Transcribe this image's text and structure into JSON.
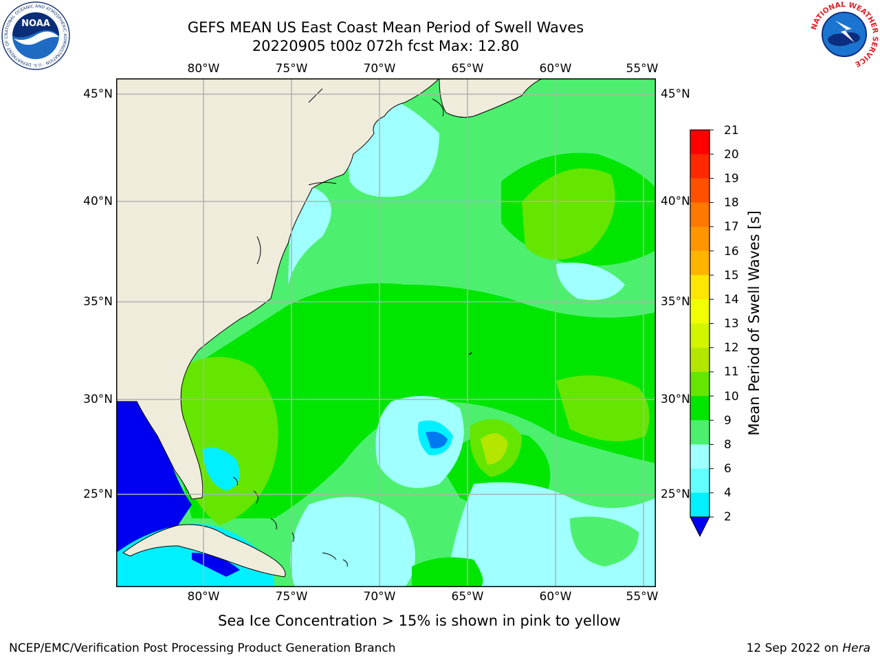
{
  "title": {
    "line1": "GEFS MEAN US East Coast Mean Period of Swell Waves",
    "line2": "20220905 t00z 072h fcst   Max: 12.80"
  },
  "map": {
    "lon_labels": [
      "80°W",
      "75°W",
      "70°W",
      "65°W",
      "60°W",
      "55°W"
    ],
    "lat_labels": [
      "45°N",
      "40°N",
      "35°N",
      "30°N",
      "25°N"
    ],
    "extent": {
      "lon": [
        -85,
        -54.5
      ],
      "lat": [
        20.5,
        46
      ]
    },
    "land_color": "#efecdc",
    "grid_color": "#b0b0b0"
  },
  "colorbar": {
    "title": "Mean Period of Swell Waves [s]",
    "labels": [
      "21",
      "20",
      "19",
      "18",
      "17",
      "16",
      "15",
      "14",
      "13",
      "12",
      "11",
      "10",
      "9",
      "8",
      "6",
      "4",
      "2"
    ],
    "colors": [
      "#ff0000",
      "#ff2800",
      "#ff5000",
      "#ff7800",
      "#ff9600",
      "#ffb400",
      "#ffe600",
      "#f0ff00",
      "#d2f500",
      "#b4e600",
      "#64e600",
      "#00e600",
      "#4cf06e",
      "#a0ffff",
      "#64ffff",
      "#00f0ff",
      "#0078f0"
    ],
    "under_color": "#0000f0"
  },
  "note": "Sea Ice Concentration > 15% is shown in pink to yellow",
  "footer": {
    "left": "NCEP/EMC/Verification Post Processing Product Generation Branch",
    "date": "12 Sep 2022 on ",
    "machine": "Hera"
  },
  "logos": {
    "noaa_text": "NOAA",
    "noaa_ring": "NATIONAL OCEANIC AND ATMOSPHERIC ADMINISTRATION · U.S. DEPARTMENT OF COMMERCE",
    "nws_ring": "NATIONAL WEATHER SERVICE"
  }
}
